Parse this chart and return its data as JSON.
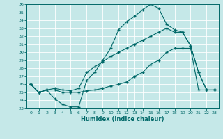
{
  "xlabel": "Humidex (Indice chaleur)",
  "xlim_min": -0.5,
  "xlim_max": 23.5,
  "ylim_min": 23,
  "ylim_max": 36,
  "yticks": [
    23,
    24,
    25,
    26,
    27,
    28,
    29,
    30,
    31,
    32,
    33,
    34,
    35,
    36
  ],
  "xticks": [
    0,
    1,
    2,
    3,
    4,
    5,
    6,
    7,
    8,
    9,
    10,
    11,
    12,
    13,
    14,
    15,
    16,
    17,
    18,
    19,
    20,
    21,
    22,
    23
  ],
  "background_color": "#c5e8e8",
  "grid_color": "#b0d8d8",
  "line_color": "#006868",
  "line1_x": [
    0,
    1,
    2,
    3,
    4,
    5,
    6,
    7,
    8,
    9,
    10,
    11,
    12,
    13,
    14,
    15,
    16,
    17,
    18,
    19,
    20,
    21,
    22,
    23
  ],
  "line1_y": [
    26.0,
    25.0,
    25.3,
    24.2,
    23.5,
    23.2,
    23.2,
    26.5,
    27.5,
    29.0,
    30.5,
    32.8,
    33.8,
    34.5,
    35.3,
    36.0,
    35.5,
    33.5,
    32.8,
    32.5,
    30.8,
    27.5,
    25.3,
    25.3
  ],
  "line2_x": [
    0,
    1,
    2,
    3,
    4,
    5,
    6,
    7,
    8,
    9,
    10,
    11,
    12,
    13,
    14,
    15,
    16,
    17,
    18,
    19,
    20,
    21,
    22,
    23
  ],
  "line2_y": [
    26.0,
    25.0,
    25.3,
    25.5,
    25.3,
    25.2,
    25.5,
    27.5,
    28.2,
    28.8,
    29.5,
    30.0,
    30.5,
    31.0,
    31.5,
    32.0,
    32.5,
    33.0,
    32.5,
    32.5,
    30.8,
    27.5,
    25.3,
    25.3
  ],
  "line3_x": [
    0,
    1,
    2,
    3,
    4,
    5,
    6,
    7,
    8,
    9,
    10,
    11,
    12,
    13,
    14,
    15,
    16,
    17,
    18,
    19,
    20,
    21,
    22,
    23
  ],
  "line3_y": [
    26.0,
    25.0,
    25.3,
    25.3,
    25.0,
    25.0,
    25.0,
    25.2,
    25.3,
    25.5,
    25.8,
    26.0,
    26.3,
    27.0,
    27.5,
    28.5,
    29.0,
    30.0,
    30.5,
    30.5,
    30.5,
    25.3,
    25.3,
    25.3
  ]
}
